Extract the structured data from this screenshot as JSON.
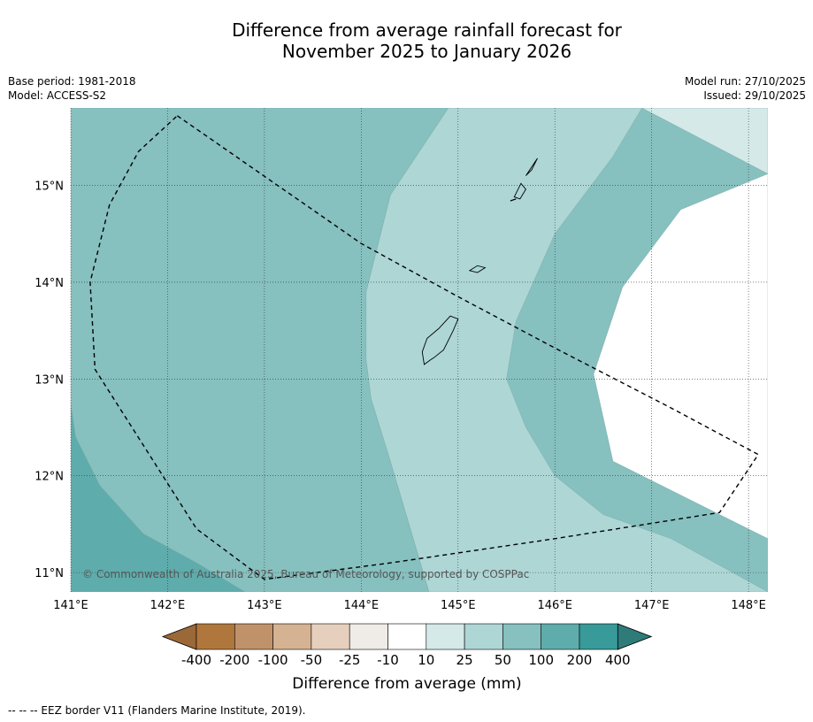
{
  "header": {
    "title_line1": "Difference from average rainfall forecast for",
    "title_line2": "November 2025 to January 2026",
    "base_period": "Base period: 1981-2018",
    "model": "Model: ACCESS-S2",
    "model_run": "Model run: 27/10/2025",
    "issued": "Issued: 29/10/2025"
  },
  "chart_data": {
    "type": "heatmap",
    "subtype": "filled contour map",
    "xlim": [
      141.0,
      148.2
    ],
    "ylim": [
      10.8,
      15.8
    ],
    "x_ticks": [
      141,
      142,
      143,
      144,
      145,
      146,
      147,
      148
    ],
    "y_ticks": [
      11,
      12,
      13,
      14,
      15
    ],
    "x_tick_labels": [
      "141°E",
      "142°E",
      "143°E",
      "144°E",
      "145°E",
      "146°E",
      "147°E",
      "148°E"
    ],
    "y_tick_labels": [
      "11°N",
      "12°N",
      "13°N",
      "14°N",
      "15°N"
    ],
    "gridlines": true,
    "regions": [
      {
        "category": "10 to 25",
        "color": "#d5e9e8",
        "polygon": [
          [
            146.9,
            15.8
          ],
          [
            148.2,
            15.8
          ],
          [
            148.2,
            11.35
          ],
          [
            147.7,
            11.6
          ],
          [
            146.6,
            12.15
          ],
          [
            146.4,
            13.05
          ],
          [
            146.7,
            13.95
          ],
          [
            147.3,
            14.75
          ],
          [
            148.2,
            15.12
          ]
        ]
      },
      {
        "category": "25 to 50",
        "color": "#add6d5",
        "polygon": [
          [
            144.9,
            15.8
          ],
          [
            146.9,
            15.8
          ],
          [
            146.6,
            15.3
          ],
          [
            146.0,
            14.5
          ],
          [
            145.6,
            13.6
          ],
          [
            145.5,
            13.0
          ],
          [
            145.7,
            12.5
          ],
          [
            146.0,
            12.0
          ],
          [
            146.5,
            11.6
          ],
          [
            147.2,
            11.35
          ],
          [
            148.2,
            10.8
          ],
          [
            144.7,
            10.8
          ],
          [
            144.3,
            12.15
          ],
          [
            144.1,
            12.8
          ],
          [
            144.05,
            13.2
          ],
          [
            144.05,
            13.9
          ],
          [
            144.3,
            14.9
          ]
        ]
      },
      {
        "category": "50 to 100",
        "color": "#86c0bf",
        "polygon": [
          [
            141.0,
            15.8
          ],
          [
            144.9,
            15.8
          ],
          [
            144.3,
            14.9
          ],
          [
            144.05,
            13.9
          ],
          [
            144.05,
            13.2
          ],
          [
            144.1,
            12.8
          ],
          [
            144.3,
            12.15
          ],
          [
            144.7,
            10.8
          ],
          [
            142.8,
            10.8
          ],
          [
            142.3,
            11.1
          ],
          [
            141.75,
            11.4
          ],
          [
            141.3,
            11.9
          ],
          [
            141.05,
            12.4
          ],
          [
            141.0,
            12.6
          ]
        ]
      },
      {
        "category": "100 to 200",
        "color": "#5eacab",
        "polygon": [
          [
            141.0,
            12.75
          ],
          [
            141.05,
            12.4
          ],
          [
            141.3,
            11.9
          ],
          [
            141.75,
            11.4
          ],
          [
            142.3,
            11.1
          ],
          [
            142.8,
            10.8
          ],
          [
            141.0,
            10.8
          ]
        ]
      },
      {
        "category": "10 to -10",
        "color": "#ffffff",
        "polygon": [
          [
            148.2,
            15.12
          ],
          [
            147.3,
            14.75
          ],
          [
            146.7,
            13.95
          ],
          [
            146.4,
            13.05
          ],
          [
            146.6,
            12.15
          ],
          [
            147.7,
            11.6
          ],
          [
            148.2,
            11.35
          ]
        ]
      }
    ],
    "islands": [
      {
        "name": "Guam",
        "polygon": [
          [
            144.75,
            13.22
          ],
          [
            144.85,
            13.3
          ],
          [
            144.95,
            13.5
          ],
          [
            145.0,
            13.62
          ],
          [
            144.92,
            13.65
          ],
          [
            144.8,
            13.52
          ],
          [
            144.68,
            13.42
          ],
          [
            144.63,
            13.28
          ],
          [
            144.65,
            13.15
          ],
          [
            144.72,
            13.2
          ]
        ]
      },
      {
        "name": "Rota",
        "polygon": [
          [
            145.12,
            14.12
          ],
          [
            145.2,
            14.17
          ],
          [
            145.28,
            14.15
          ],
          [
            145.2,
            14.1
          ]
        ]
      },
      {
        "name": "Tinian",
        "polygon": [
          [
            145.58,
            14.88
          ],
          [
            145.65,
            15.02
          ],
          [
            145.7,
            14.96
          ],
          [
            145.64,
            14.86
          ]
        ]
      },
      {
        "name": "Saipan",
        "polygon": [
          [
            145.7,
            15.1
          ],
          [
            145.78,
            15.22
          ],
          [
            145.82,
            15.28
          ],
          [
            145.76,
            15.16
          ]
        ]
      },
      {
        "name": "Aguijan",
        "polygon": [
          [
            145.54,
            14.84
          ],
          [
            145.6,
            14.86
          ]
        ]
      }
    ],
    "eez_border": [
      [
        142.1,
        15.72
      ],
      [
        144.0,
        14.4
      ],
      [
        145.0,
        13.85
      ],
      [
        146.0,
        13.32
      ],
      [
        147.2,
        12.7
      ],
      [
        148.1,
        12.22
      ],
      [
        147.7,
        11.62
      ],
      [
        146.0,
        11.35
      ],
      [
        144.3,
        11.1
      ],
      [
        143.0,
        10.93
      ],
      [
        142.3,
        11.45
      ],
      [
        141.25,
        13.1
      ],
      [
        141.2,
        14.0
      ],
      [
        141.4,
        14.8
      ],
      [
        141.7,
        15.35
      ],
      [
        142.1,
        15.72
      ]
    ],
    "watermark": "© Commonwealth of Australia 2025, Bureau of Meteorology, supported by COSPPac"
  },
  "colorbar": {
    "label": "Difference from average (mm)",
    "tick_labels": [
      "-400",
      "-200",
      "-100",
      "-50",
      "-25",
      "-10",
      "10",
      "25",
      "50",
      "100",
      "200",
      "400"
    ],
    "extend_low_color": "#9b6837",
    "extend_high_color": "#2e7b7a",
    "colors": [
      "#b0773d",
      "#c0926a",
      "#d4b292",
      "#e6d0bd",
      "#efebe6",
      "#ffffff",
      "#d5e9e8",
      "#add6d5",
      "#86c0bf",
      "#5eacab",
      "#389a99"
    ]
  },
  "footer": {
    "legend_text": "--  --  -- EEZ border V11 (Flanders Marine Institute, 2019)."
  }
}
